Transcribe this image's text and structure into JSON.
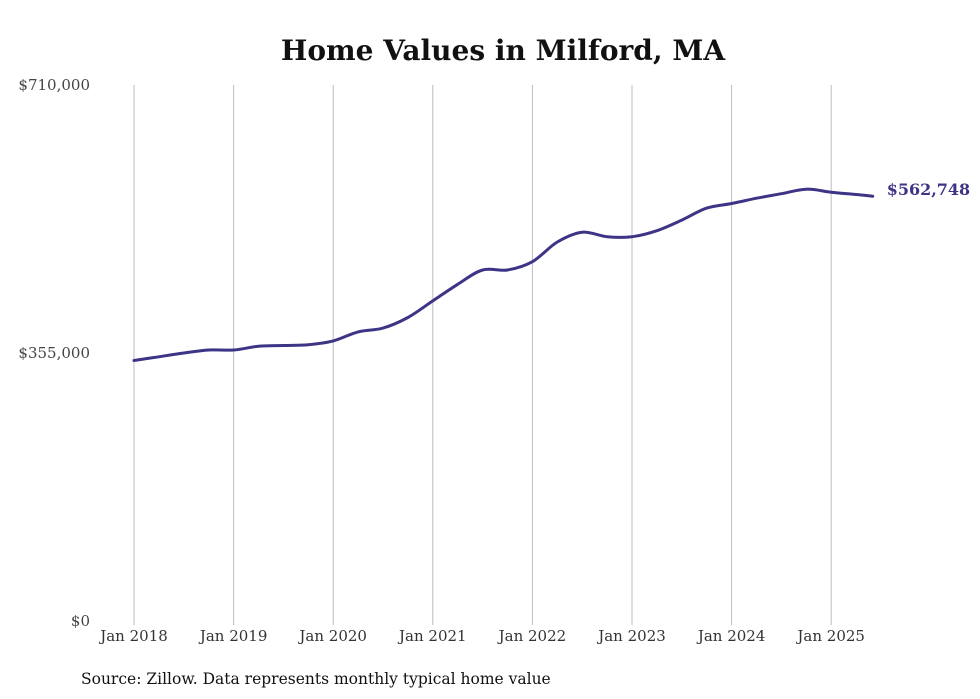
{
  "chart_data": {
    "type": "line",
    "title": "Home Values in Milford, MA",
    "source_note": "Source: Zillow. Data represents monthly typical home value",
    "xlabel": "",
    "ylabel": "",
    "ylim": [
      0,
      710000
    ],
    "yticks": [
      {
        "value": 0,
        "label": "$0"
      },
      {
        "value": 355000,
        "label": "$355,000"
      },
      {
        "value": 710000,
        "label": "$710,000"
      }
    ],
    "xticks": [
      {
        "year": 2018,
        "label": "Jan 2018"
      },
      {
        "year": 2019,
        "label": "Jan 2019"
      },
      {
        "year": 2020,
        "label": "Jan 2020"
      },
      {
        "year": 2021,
        "label": "Jan 2021"
      },
      {
        "year": 2022,
        "label": "Jan 2022"
      },
      {
        "year": 2023,
        "label": "Jan 2023"
      },
      {
        "year": 2024,
        "label": "Jan 2024"
      },
      {
        "year": 2025,
        "label": "Jan 2025"
      }
    ],
    "xlim": [
      "2018-01",
      "2025-06"
    ],
    "grid": "vertical",
    "line_color": "#3d3486",
    "end_label": "$562,748",
    "series": [
      {
        "points": [
          [
            "2018-01",
            345000
          ],
          [
            "2018-04",
            350000
          ],
          [
            "2018-07",
            355000
          ],
          [
            "2018-10",
            359000
          ],
          [
            "2019-01",
            359000
          ],
          [
            "2019-04",
            364000
          ],
          [
            "2019-07",
            365000
          ],
          [
            "2019-10",
            366000
          ],
          [
            "2020-01",
            371000
          ],
          [
            "2020-04",
            383000
          ],
          [
            "2020-07",
            388000
          ],
          [
            "2020-10",
            402000
          ],
          [
            "2021-01",
            424000
          ],
          [
            "2021-04",
            446000
          ],
          [
            "2021-07",
            465000
          ],
          [
            "2021-10",
            465000
          ],
          [
            "2022-01",
            476000
          ],
          [
            "2022-04",
            502000
          ],
          [
            "2022-07",
            515000
          ],
          [
            "2022-10",
            509000
          ],
          [
            "2023-01",
            509000
          ],
          [
            "2023-04",
            517000
          ],
          [
            "2023-07",
            531000
          ],
          [
            "2023-10",
            547000
          ],
          [
            "2024-01",
            553000
          ],
          [
            "2024-04",
            560000
          ],
          [
            "2024-07",
            566000
          ],
          [
            "2024-10",
            572000
          ],
          [
            "2025-01",
            568000
          ],
          [
            "2025-04",
            565000
          ],
          [
            "2025-06",
            562748
          ]
        ]
      }
    ]
  }
}
